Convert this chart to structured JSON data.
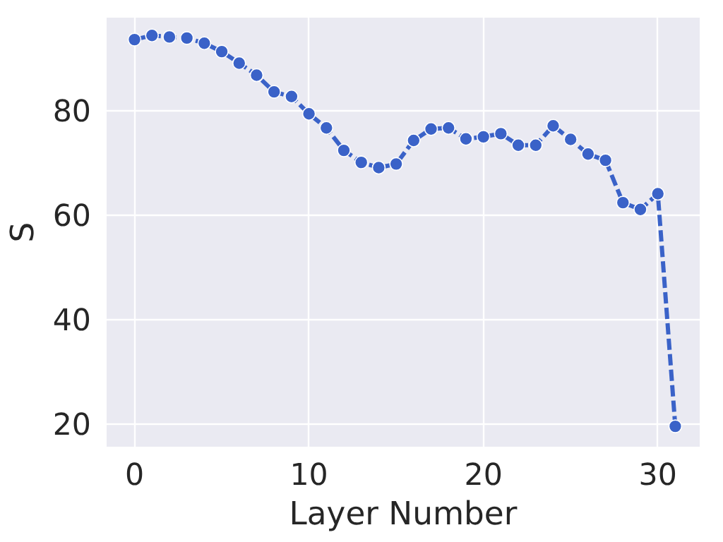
{
  "chart_data": {
    "type": "line",
    "xlabel": "Layer Number",
    "ylabel": "S",
    "x": [
      0,
      1,
      2,
      3,
      4,
      5,
      6,
      7,
      8,
      9,
      10,
      11,
      12,
      13,
      14,
      15,
      16,
      17,
      18,
      19,
      20,
      21,
      22,
      23,
      24,
      25,
      26,
      27,
      28,
      29,
      30,
      31
    ],
    "series": [
      {
        "color": "#3a62c8",
        "values": [
          93.5,
          94.3,
          94,
          93.8,
          92.8,
          91.2,
          89,
          86.7,
          83.5,
          82.6,
          79.3,
          76.6,
          72.3,
          70,
          69,
          69.7,
          74.2,
          76.4,
          76.6,
          74.5,
          74.9,
          75.5,
          73.3,
          73.3,
          77,
          74.4,
          71.6,
          70.4,
          62.3,
          61,
          64,
          19.5
        ]
      }
    ],
    "xlim": [
      -1.6,
      32.4
    ],
    "ylim": [
      15.6,
      97.7
    ],
    "xticks": [
      0,
      10,
      20,
      30
    ],
    "yticks": [
      20,
      40,
      60,
      80
    ],
    "grid": true,
    "marker": "circle",
    "line_style": "dashed"
  }
}
